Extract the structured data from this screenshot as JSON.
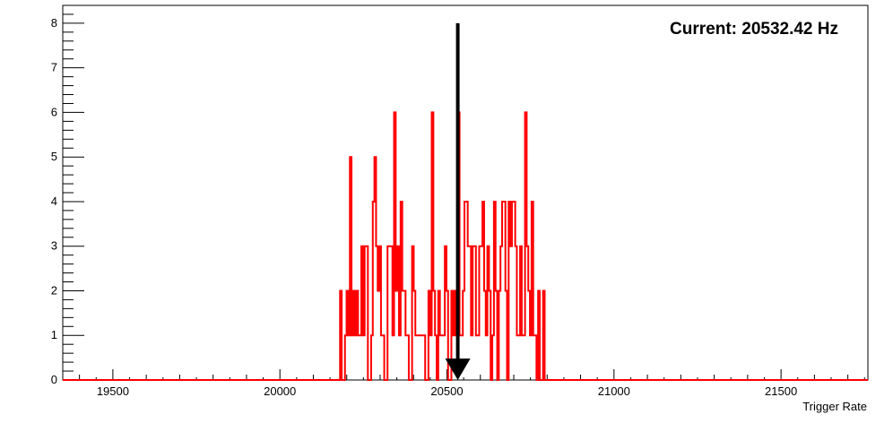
{
  "chart_data": {
    "type": "histogram",
    "title": "",
    "annotation": "Current: 20532.42 Hz",
    "current_value": 20532.42,
    "xlabel": "Trigger Rate",
    "ylabel": "",
    "xlim": [
      19350,
      21760
    ],
    "ylim": [
      0,
      8.4
    ],
    "x_ticks": [
      19500,
      20000,
      20500,
      21000,
      21500
    ],
    "x_tick_labels": [
      "19500",
      "20000",
      "20500",
      "21000",
      "21500"
    ],
    "y_ticks": [
      0,
      1,
      2,
      3,
      4,
      5,
      6,
      7,
      8
    ],
    "y_tick_labels": [
      "0",
      "1",
      "2",
      "3",
      "4",
      "5",
      "6",
      "7",
      "8"
    ],
    "bin_width": 4.9,
    "bins_start": 20180,
    "counts": [
      2,
      0,
      0,
      1,
      2,
      1,
      5,
      1,
      2,
      1,
      2,
      1,
      1,
      3,
      1,
      3,
      3,
      0,
      0,
      1,
      4,
      5,
      3,
      2,
      3,
      1,
      1,
      0,
      0,
      3,
      3,
      3,
      1,
      6,
      2,
      3,
      1,
      4,
      2,
      2,
      1,
      1,
      0,
      0,
      3,
      2,
      1,
      1,
      1,
      1,
      1,
      1,
      0,
      0,
      2,
      1,
      6,
      2,
      1,
      0,
      2,
      1,
      1,
      1,
      3,
      2,
      0,
      0,
      2,
      1,
      2,
      1,
      6,
      1,
      1,
      2,
      4,
      4,
      3,
      3,
      1,
      3,
      3,
      1,
      1,
      3,
      3,
      4,
      2,
      1,
      3,
      2,
      0,
      1,
      4,
      2,
      0,
      2,
      3,
      4,
      4,
      2,
      0,
      4,
      3,
      4,
      4,
      3,
      1,
      1,
      3,
      1,
      1,
      6,
      3,
      2,
      1,
      4,
      1,
      1,
      0,
      2,
      0,
      0,
      2,
      0,
      0,
      0,
      0,
      0,
      0,
      0,
      0,
      0,
      0,
      0
    ],
    "colors": {
      "histogram_line": "#ff0000",
      "arrow": "#000000",
      "axis": "#000000",
      "background": "#ffffff"
    }
  }
}
